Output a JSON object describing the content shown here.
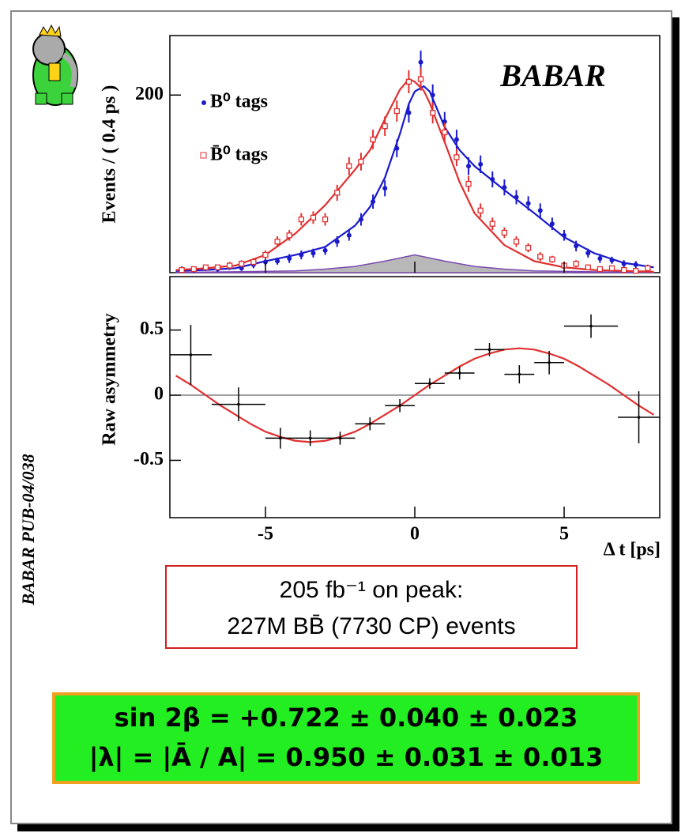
{
  "chart_data": [
    {
      "type": "errorbar",
      "ylabel": "Events / ( 0.4 ps )",
      "logo": "BABAR",
      "xlim": [
        -8.2,
        8.2
      ],
      "ylim": [
        0,
        267
      ],
      "yticks": [
        200
      ],
      "x": [
        -7.8,
        -7.4,
        -7,
        -6.6,
        -6.2,
        -5.8,
        -5.4,
        -5,
        -4.6,
        -4.2,
        -3.8,
        -3.4,
        -3,
        -2.6,
        -2.2,
        -1.8,
        -1.4,
        -1,
        -0.6,
        -0.2,
        0.2,
        0.6,
        1,
        1.4,
        1.8,
        2.2,
        2.6,
        3,
        3.4,
        3.8,
        4.2,
        4.6,
        5,
        5.4,
        5.8,
        6.2,
        6.6,
        7,
        7.4,
        7.8
      ],
      "series": [
        {
          "name": "B⁰ tags",
          "color": "#1a1acc",
          "marker": "dot",
          "values": [
            4,
            3,
            5,
            4,
            6,
            5,
            9,
            12,
            13,
            16,
            20,
            22,
            25,
            35,
            42,
            60,
            80,
            95,
            140,
            180,
            237,
            200,
            170,
            150,
            120,
            122,
            105,
            96,
            85,
            78,
            70,
            55,
            42,
            30,
            22,
            16,
            14,
            10,
            9,
            6
          ],
          "errors": [
            3,
            3,
            3,
            3,
            3,
            3,
            4,
            4,
            4,
            5,
            5,
            5,
            5,
            6,
            6,
            7,
            8,
            9,
            10,
            11,
            13,
            12,
            11,
            11,
            10,
            10,
            9,
            9,
            8,
            8,
            8,
            7,
            6,
            6,
            5,
            5,
            4,
            4,
            4,
            3
          ]
        },
        {
          "name": "B̄⁰ tags",
          "color": "#e03030",
          "marker": "square",
          "values": [
            3,
            4,
            6,
            6,
            8,
            10,
            12,
            20,
            35,
            42,
            60,
            62,
            60,
            90,
            120,
            125,
            150,
            165,
            182,
            215,
            218,
            180,
            158,
            130,
            100,
            70,
            55,
            45,
            35,
            28,
            18,
            15,
            8,
            10,
            6,
            4,
            5,
            3,
            2,
            5
          ],
          "errors": [
            3,
            3,
            3,
            3,
            4,
            4,
            4,
            5,
            6,
            6,
            7,
            7,
            7,
            9,
            10,
            10,
            11,
            11,
            12,
            13,
            13,
            12,
            11,
            10,
            9,
            8,
            7,
            6,
            6,
            5,
            5,
            4,
            4,
            4,
            3,
            3,
            3,
            3,
            3,
            3
          ]
        }
      ],
      "fits": [
        {
          "color": "#1a1acc",
          "x": [
            -8,
            -7,
            -6,
            -5,
            -4,
            -3,
            -2,
            -1.5,
            -1,
            -0.5,
            -0.2,
            0,
            0.3,
            0.5,
            1,
            1.5,
            2,
            3,
            4,
            5,
            6,
            7,
            8
          ],
          "values": [
            2,
            3,
            5,
            13,
            20,
            29,
            53,
            74,
            107,
            156,
            190,
            204,
            210,
            204,
            164,
            138,
            120,
            93,
            67,
            40,
            22,
            11,
            6
          ]
        },
        {
          "color": "#e03030",
          "x": [
            -8,
            -7,
            -6,
            -5,
            -4,
            -3,
            -2,
            -1.5,
            -1,
            -0.5,
            -0.2,
            0,
            0.3,
            0.5,
            1,
            1.5,
            2,
            3,
            4,
            5,
            6,
            7,
            8
          ],
          "values": [
            3,
            5,
            8,
            20,
            44,
            76,
            116,
            138,
            173,
            206,
            218,
            215,
            205,
            191,
            147,
            102,
            67,
            31,
            13,
            6,
            3,
            2,
            1
          ]
        }
      ],
      "background": {
        "color": "#b8b8b8",
        "x": [
          -8,
          -6,
          -4,
          -3,
          -2,
          -1,
          0,
          1,
          2,
          3,
          4,
          6,
          8
        ],
        "values": [
          0.5,
          1,
          2,
          4,
          7,
          13,
          20,
          13,
          7,
          4,
          2,
          1,
          0.5
        ]
      }
    },
    {
      "type": "errorbar",
      "ylabel": "Raw asymmetry",
      "xlabel": "Δ t [ps]",
      "color": "#000000",
      "xlim": [
        -8.2,
        8.2
      ],
      "ylim": [
        -0.94,
        0.91
      ],
      "xticks": [
        -5,
        0,
        5
      ],
      "yticks": [
        0.5,
        0,
        -0.5
      ],
      "x": [
        -7.5,
        -5.9,
        -4.5,
        -3.5,
        -2.5,
        -1.5,
        -0.5,
        0.5,
        1.5,
        2.5,
        3.5,
        4.5,
        5.9,
        7.5
      ],
      "values": [
        0.31,
        -0.07,
        -0.33,
        -0.33,
        -0.33,
        -0.22,
        -0.08,
        0.09,
        0.17,
        0.35,
        0.16,
        0.25,
        0.53,
        -0.17
      ],
      "errors": [
        0.23,
        0.13,
        0.08,
        0.06,
        0.05,
        0.05,
        0.05,
        0.04,
        0.05,
        0.05,
        0.07,
        0.09,
        0.09,
        0.2
      ],
      "xerrors": [
        0.7,
        0.9,
        0.5,
        0.5,
        0.5,
        0.5,
        0.5,
        0.5,
        0.5,
        0.5,
        0.5,
        0.5,
        0.9,
        0.7
      ],
      "fit": {
        "color": "#e03030",
        "x": [
          -8,
          -7.5,
          -7,
          -6.5,
          -6,
          -5.5,
          -5,
          -4.5,
          -4,
          -3.5,
          -3,
          -2.5,
          -2,
          -1.5,
          -1,
          -0.5,
          0,
          0.5,
          1,
          1.5,
          2,
          2.5,
          3,
          3.5,
          4,
          4.5,
          5,
          5.5,
          6,
          6.5,
          7,
          7.5,
          8
        ],
        "values": [
          0.15,
          0.08,
          0,
          -0.08,
          -0.15,
          -0.22,
          -0.28,
          -0.32,
          -0.35,
          -0.36,
          -0.35,
          -0.32,
          -0.28,
          -0.22,
          -0.15,
          -0.08,
          0,
          0.08,
          0.15,
          0.22,
          0.28,
          0.32,
          0.35,
          0.36,
          0.35,
          0.32,
          0.28,
          0.22,
          0.15,
          0.08,
          0,
          -0.08,
          -0.15
        ]
      }
    }
  ],
  "side_label": "BABAR PUB-04/038",
  "info_box": {
    "line1": "205 fb⁻¹ on peak:",
    "line2": "227M BB̄ (7730 CP) events"
  },
  "results": [
    "sin 2β = +0.722 ± 0.040 ± 0.023",
    "|λ| = |Ā / A| = 0.950 ± 0.031 ± 0.013"
  ]
}
